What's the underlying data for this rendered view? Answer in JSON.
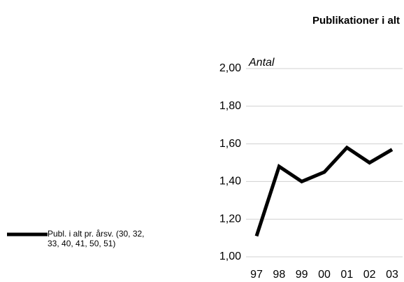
{
  "chart_data": {
    "type": "line",
    "title": "Publikationer i alt",
    "y_label": "Antal",
    "categories": [
      "97",
      "98",
      "99",
      "00",
      "01",
      "02",
      "03"
    ],
    "series": [
      {
        "name": "Publ. i alt pr. årsv. (30, 32, 33, 40, 41, 50, 51)",
        "color": "#000000",
        "values": [
          1.11,
          1.48,
          1.4,
          1.45,
          1.58,
          1.5,
          1.57
        ]
      }
    ],
    "ylim": [
      1,
      2
    ],
    "yticks": [
      {
        "value": 1,
        "label": "1,00"
      },
      {
        "value": 1.2,
        "label": "1,20"
      },
      {
        "value": 1.4,
        "label": "1,40"
      },
      {
        "value": 1.6,
        "label": "1,60"
      },
      {
        "value": 1.8,
        "label": "1,80"
      },
      {
        "value": 2,
        "label": "2,00"
      }
    ],
    "grid": true,
    "legend": "left"
  }
}
